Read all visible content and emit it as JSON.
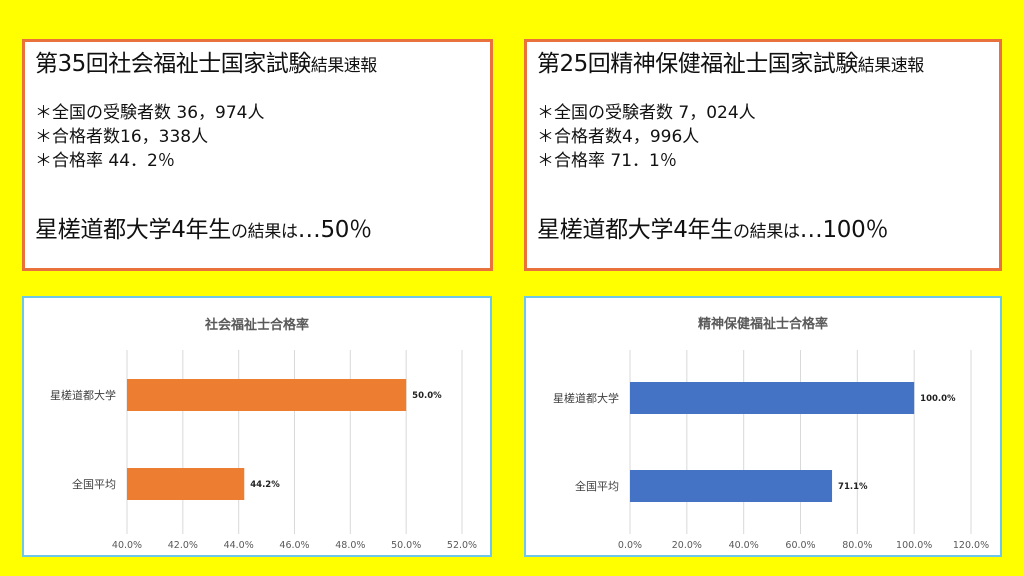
{
  "left_panel": {
    "title_main": "第35回社会福祉士国家試験",
    "title_small": "結果速報",
    "stats": [
      "＊全国の受験者数 36，974人",
      "＊合格者数16，338人",
      "＊合格率 44．2％"
    ],
    "result_main": "星槎道都大学4年生",
    "result_small": "の結果は",
    "result_value": "…50％"
  },
  "right_panel": {
    "title_main": "第25回精神保健福祉士国家試験",
    "title_small": "結果速報",
    "stats": [
      "＊全国の受験者数 7，024人",
      "＊合格者数4，996人",
      "＊合格率 71．1％"
    ],
    "result_main": "星槎道都大学4年生",
    "result_small": "の結果は",
    "result_value": "…100％"
  },
  "chart_data": [
    {
      "type": "bar",
      "orientation": "horizontal",
      "title": "社会福祉士合格率",
      "categories": [
        "星槎道都大学",
        "全国平均"
      ],
      "values": [
        50.0,
        44.2
      ],
      "value_labels": [
        "50.0%",
        "44.2%"
      ],
      "xlim": [
        40,
        52
      ],
      "ticks": [
        40,
        42,
        44,
        46,
        48,
        50,
        52
      ],
      "tick_labels": [
        "40.0%",
        "42.0%",
        "44.0%",
        "46.0%",
        "48.0%",
        "50.0%",
        "52.0%"
      ],
      "bar_color": "#ed7d31",
      "grid": true,
      "legend": "none"
    },
    {
      "type": "bar",
      "orientation": "horizontal",
      "title": "精神保健福祉士合格率",
      "categories": [
        "星槎道都大学",
        "全国平均"
      ],
      "values": [
        100.0,
        71.1
      ],
      "value_labels": [
        "100.0%",
        "71.1%"
      ],
      "xlim": [
        0,
        120
      ],
      "ticks": [
        0,
        20,
        40,
        60,
        80,
        100,
        120
      ],
      "tick_labels": [
        "0.0%",
        "20.0%",
        "40.0%",
        "60.0%",
        "80.0%",
        "100.0%",
        "120.0%"
      ],
      "bar_color": "#4472c4",
      "grid": true,
      "legend": "none"
    }
  ]
}
